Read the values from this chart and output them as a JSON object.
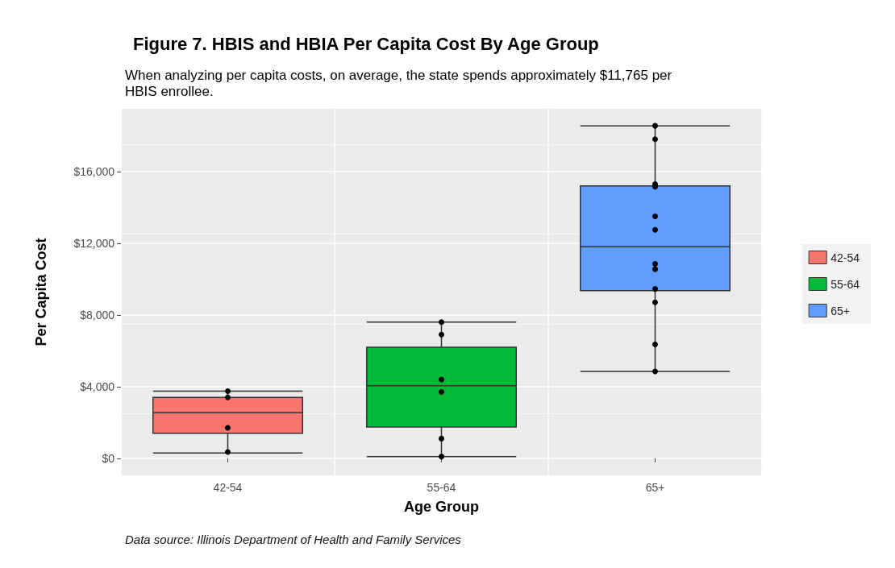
{
  "chart_data": {
    "type": "box",
    "title": "Figure 7. HBIS and HBIA Per Capita Cost By Age Group",
    "subtitle": "When analyzing per capita costs, on average, the state spends approximately $11,765 per\nHBIS enrollee.",
    "xlabel": "Age Group",
    "ylabel": "Per Capita Cost",
    "annotations": [
      "Data source: Illinois Department of Health and Family Services"
    ],
    "categories": [
      "42-54",
      "55-64",
      "65+"
    ],
    "series": [
      {
        "type": "box",
        "name": "42-54",
        "color": "#f8766d",
        "boxes": [
          {
            "low": 300,
            "q1": 1400,
            "median": 2550,
            "q3": 3400,
            "high": 3750
          },
          null,
          null
        ]
      },
      {
        "type": "box",
        "name": "55-64",
        "color": "#00ba38",
        "boxes": [
          null,
          {
            "low": 100,
            "q1": 1750,
            "median": 4050,
            "q3": 6200,
            "high": 7600
          },
          null
        ]
      },
      {
        "type": "box",
        "name": "65+",
        "color": "#619cff",
        "boxes": [
          null,
          null,
          {
            "low": 4850,
            "q1": 9350,
            "median": 11800,
            "q3": 15200,
            "high": 18550
          }
        ]
      },
      {
        "type": "scatter",
        "color": "#000000",
        "x": [
          "42-54",
          "42-54",
          "42-54",
          "42-54",
          "55-64",
          "55-64",
          "55-64",
          "55-64",
          "55-64",
          "55-64",
          "65+",
          "65+",
          "65+",
          "65+",
          "65+",
          "65+",
          "65+",
          "65+",
          "65+",
          "65+",
          "65+",
          "65+"
        ],
        "values": [
          3750,
          3400,
          1700,
          350,
          7600,
          6900,
          4400,
          3700,
          1100,
          100,
          18550,
          17800,
          15150,
          15300,
          13500,
          12750,
          10850,
          10550,
          9450,
          8700,
          6350,
          4850
        ]
      }
    ],
    "ylim": [
      -950,
      19500
    ],
    "yticks": [
      {
        "value": 0,
        "label": "$0"
      },
      {
        "value": 4000,
        "label": "$4,000"
      },
      {
        "value": 8000,
        "label": "$8,000"
      },
      {
        "value": 12000,
        "label": "$12,000"
      },
      {
        "value": 16000,
        "label": "$16,000"
      }
    ],
    "grid": true,
    "legend": "right",
    "marker": "circle"
  }
}
